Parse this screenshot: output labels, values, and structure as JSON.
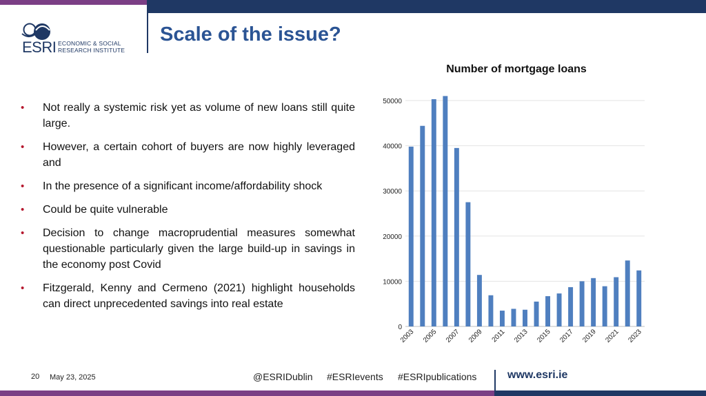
{
  "brand": {
    "logo_wordmark": "ESRI",
    "logo_line1": "ECONOMIC & SOCIAL",
    "logo_line2": "RESEARCH INSTITUTE",
    "navy": "#1f3864",
    "purple": "#7b3f85",
    "bullet_color": "#b5182e",
    "bar_color": "#4f7fbf"
  },
  "slide": {
    "title": "Scale of the issue?",
    "bullets": [
      "Not really a systemic risk yet as volume of new loans still quite large.",
      "However, a certain cohort of buyers are now highly leveraged and",
      "In the presence of a significant income/affordability shock",
      "Could be quite vulnerable",
      "Decision to change macroprudential measures somewhat questionable particularly given the large build-up in savings in the economy post Covid",
      "Fitzgerald, Kenny and Cermeno (2021) highlight households can direct unprecedented savings into real estate"
    ],
    "bullet_marker": "•"
  },
  "footer": {
    "page_number": "20",
    "date": "May 23, 2025",
    "twitter": "@ESRIDublin",
    "tag_events": "#ESRIevents",
    "tag_publications": "#ESRIpublications",
    "url": "www.esri.ie"
  },
  "chart_data": {
    "type": "bar",
    "title": "Number of mortgage loans",
    "categories": [
      "2003",
      "2004",
      "2005",
      "2006",
      "2007",
      "2008",
      "2009",
      "2010",
      "2011",
      "2012",
      "2013",
      "2014",
      "2015",
      "2016",
      "2017",
      "2018",
      "2019",
      "2020",
      "2021",
      "2022",
      "2023"
    ],
    "x_tick_labels": [
      "2003",
      "2005",
      "2007",
      "2009",
      "2011",
      "2013",
      "2015",
      "2017",
      "2019",
      "2021",
      "2023"
    ],
    "values": [
      39800,
      44400,
      50300,
      51000,
      39500,
      27500,
      11400,
      6900,
      3500,
      3900,
      3700,
      5500,
      6700,
      7300,
      8700,
      10000,
      10700,
      8900,
      10900,
      14600,
      12400
    ],
    "ylim": [
      0,
      50000
    ],
    "y_ticks": [
      0,
      10000,
      20000,
      30000,
      40000,
      50000
    ],
    "grid": true,
    "legend": "none"
  }
}
